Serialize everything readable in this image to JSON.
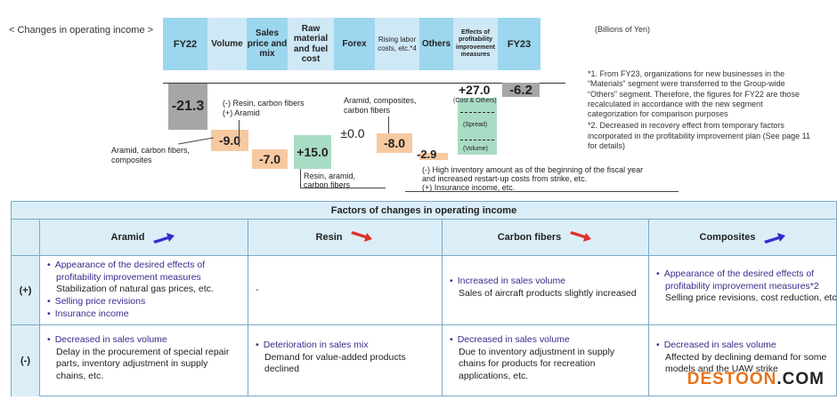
{
  "section_title": "< Changes in operating income >",
  "units": "(Billions of Yen)",
  "colors": {
    "header_strip": "#cfe8f5",
    "header_highlight": "#9cd6ef",
    "bar_gray": "#a6a6a6",
    "bar_orange": "#f7c9a1",
    "bar_green": "#a9dcc4",
    "blue_text": "#3a2a8c",
    "up_arrow": "#3a2ad0",
    "down_arrow": "#e0302a"
  },
  "chart_data": {
    "type": "bar",
    "subtype": "waterfall",
    "categories": [
      "FY22",
      "Volume",
      "Sales price and mix",
      "Raw material and fuel cost",
      "Forex",
      "Rising labor costs, etc.*4",
      "Others",
      "Effects of profitability improvement measures",
      "FY23"
    ],
    "values": [
      -21.3,
      -9.0,
      -7.0,
      15.0,
      0.0,
      -8.0,
      -2.9,
      27.0,
      -6.2
    ],
    "value_labels": [
      "-21.3",
      "-9.0",
      "-7.0",
      "+15.0",
      "±0.0",
      "-8.0",
      "-2.9",
      "+27.0",
      "-6.2"
    ],
    "units": "Billions of Yen",
    "bar_annotations": {
      "effects_top": "(Cost & Others)",
      "effects_mid": "(Spread)",
      "effects_bottom": "(Volume)"
    }
  },
  "annotations": {
    "volume_note": "Aramid, carbon fibers, composites",
    "price_note_1": "(-) Resin, carbon fibers",
    "price_note_2": "(+) Aramid",
    "raw_note_1": "Resin, aramid,",
    "raw_note_2": "carbon fibers",
    "labor_note_1": "Aramid, composites,",
    "labor_note_2": "carbon fibers",
    "others_note_1": "(-) High inventory amount as of the beginning of the fiscal year",
    "others_note_2": "and increased restart-up costs from strike, etc.",
    "others_note_3": "(+) Insurance income, etc."
  },
  "footnotes": {
    "f1_a": "*1. From FY23, organizations for new businesses in the",
    "f1_b": "“Materials” segment were transferred to the Group-wide",
    "f1_c": "“Others” segment. Therefore, the figures for FY22 are those",
    "f1_d": "recalculated in accordance with the new segment",
    "f1_e": "categorization for comparison purposes",
    "f2_a": "*2. Decreased in recovery effect from temporary factors",
    "f2_b": "incorporated in the profitability improvement plan (See page 11",
    "f2_c": "for details)"
  },
  "table": {
    "title": "Factors of changes in operating income",
    "columns": [
      "Aramid",
      "Resin",
      "Carbon fibers",
      "Composites"
    ],
    "row_labels": [
      "(+)",
      "(-)"
    ],
    "plus": {
      "aramid_b1": "Appearance of the desired effects of",
      "aramid_b1b": "profitability improvement measures",
      "aramid_s1": "Stabilization of natural gas prices, etc.",
      "aramid_b2": "Selling price revisions",
      "aramid_b3": "Insurance income",
      "resin": "-",
      "carbon_b1": "Increased in sales volume",
      "carbon_s1": "Sales of aircraft products slightly increased",
      "comp_b1": "Appearance of the desired effects of",
      "comp_b1b": "profitability improvement measures*2",
      "comp_s1": "Selling price revisions, cost reduction, etc"
    },
    "minus": {
      "aramid_b1": "Decreased in sales volume",
      "aramid_s1": "Delay in the procurement of special repair",
      "aramid_s2": "parts, inventory adjustment in supply",
      "aramid_s3": "chains, etc.",
      "resin_b1": "Deterioration in sales mix",
      "resin_s1": "Demand for value-added products",
      "resin_s2": "declined",
      "carbon_b1": "Decreased in sales volume",
      "carbon_s1": "Due to inventory adjustment in supply",
      "carbon_s2": "chains for products for recreation",
      "carbon_s3": "applications, etc.",
      "comp_b1": "Decreased in sales volume",
      "comp_s1": "Affected by declining demand for some",
      "comp_s2": "models and the UAW strike"
    }
  },
  "watermark": {
    "part1": "DESTOON",
    "part2": ".COM",
    "color1": "#e8731a",
    "color2": "#222222"
  }
}
